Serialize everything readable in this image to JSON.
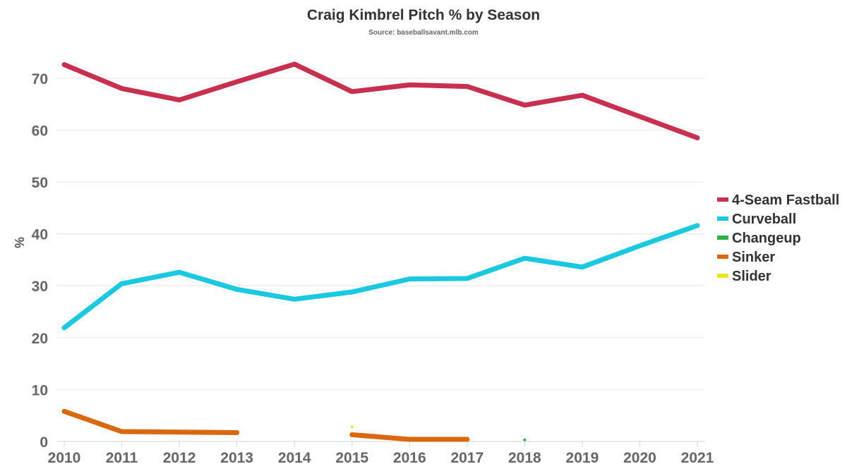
{
  "chart_data": {
    "type": "line",
    "title": "Craig Kimbrel Pitch % by Season",
    "subtitle": "Source: baseballsavant.mlb.com",
    "xlabel": "",
    "ylabel": "%",
    "x": [
      2010,
      2011,
      2012,
      2013,
      2014,
      2015,
      2016,
      2017,
      2018,
      2019,
      2020,
      2021
    ],
    "x_tick_labels": [
      "2010",
      "2011",
      "2012",
      "2013",
      "2014",
      "2015",
      "2016",
      "2017",
      "2018",
      "2019",
      "2020",
      "2021"
    ],
    "y_ticks": [
      0,
      10,
      20,
      30,
      40,
      50,
      60,
      70
    ],
    "y_tick_labels": [
      "0",
      "10",
      "20",
      "30",
      "40",
      "50",
      "60",
      "70"
    ],
    "ylim": [
      0,
      75
    ],
    "grid": true,
    "legend_position": "right",
    "series": [
      {
        "name": "4-Seam Fastball",
        "color": "#c8304f",
        "values": [
          72.6,
          68.0,
          65.8,
          69.3,
          72.7,
          67.4,
          68.7,
          68.4,
          64.8,
          66.7,
          62.6,
          58.5
        ]
      },
      {
        "name": "Curveball",
        "color": "#1ac8e0",
        "values": [
          21.9,
          30.4,
          32.6,
          29.3,
          27.4,
          28.8,
          31.3,
          31.4,
          35.3,
          33.6,
          37.7,
          41.6
        ]
      },
      {
        "name": "Changeup",
        "color": "#2eb34a",
        "values": [
          null,
          null,
          null,
          null,
          null,
          null,
          null,
          null,
          0.3,
          null,
          null,
          null
        ]
      },
      {
        "name": "Sinker",
        "color": "#d9680f",
        "values": [
          5.8,
          1.9,
          1.8,
          1.7,
          null,
          1.3,
          0.4,
          0.4,
          null,
          null,
          null,
          null
        ]
      },
      {
        "name": "Slider",
        "color": "#ebe22a",
        "values": [
          null,
          null,
          null,
          null,
          null,
          2.8,
          null,
          null,
          null,
          null,
          null,
          null
        ]
      }
    ]
  }
}
